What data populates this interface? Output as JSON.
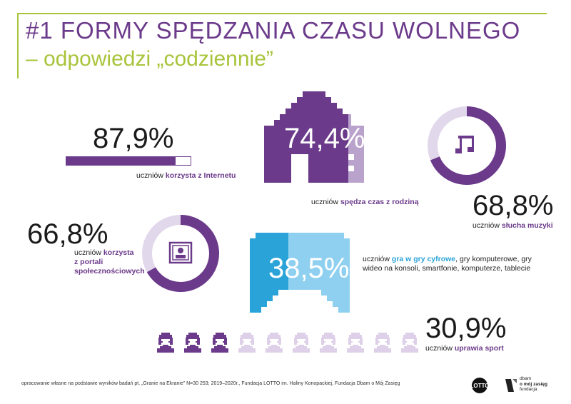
{
  "header": {
    "title": "#1 FORMY SPĘDZANIA CZASU WOLNEGO",
    "subtitle": "– odpowiedzi „codziennie”"
  },
  "colors": {
    "purple": "#6b3a8a",
    "light_purple": "#b9a2cc",
    "pale_purple": "#e2d8ec",
    "green": "#a8c43a",
    "blue": "#2aa3d9",
    "light_blue": "#8fd0f0"
  },
  "stats": {
    "internet": {
      "value_label": "87,9%",
      "value": 87.9,
      "desc_prefix": "uczniów ",
      "desc_highlight": "korzysta z Internetu",
      "icon": "progress-bar"
    },
    "family": {
      "value_label": "74,4%",
      "value": 74.4,
      "desc_prefix": "uczniów ",
      "desc_highlight": "spędza czas z rodziną",
      "icon": "house-icon"
    },
    "music": {
      "value_label": "68,8%",
      "value": 68.8,
      "desc_prefix": "uczniów ",
      "desc_highlight": "słucha muzyki",
      "icon": "music-note-icon"
    },
    "social": {
      "value_label": "66,8%",
      "value": 66.8,
      "desc_prefix": "uczniów ",
      "desc_highlight_1": "korzysta",
      "desc_highlight_2": "z portali",
      "desc_highlight_3": "społecznościowych",
      "icon": "profile-picture-icon"
    },
    "games": {
      "value_label": "38,5%",
      "value": 38.5,
      "desc_prefix": "uczniów ",
      "desc_highlight": "gra w gry cyfrowe",
      "desc_rest_1": ", gry komputerowe, gry",
      "desc_rest_2": "wideo na konsoli, smartfonie, komputerze, tablecie",
      "icon": "gamepad-icon"
    },
    "sport": {
      "value_label": "30,9%",
      "value": 30.9,
      "desc_prefix": "uczniów ",
      "desc_highlight": "uprawia sport",
      "icon": "person-icon"
    }
  },
  "footer": {
    "note": "opracowanie własne na podstawie wyników badań pt. „Granie na Ekranie” N=30 253; 2019–2020r., Fundacja LOTTO im. Haliny Konopackiej, Fundacja Dbam o Mój Zasięg",
    "dbam_line1": "dbam",
    "dbam_line2": "o mój zasięg",
    "dbam_line3": "fundacja"
  }
}
